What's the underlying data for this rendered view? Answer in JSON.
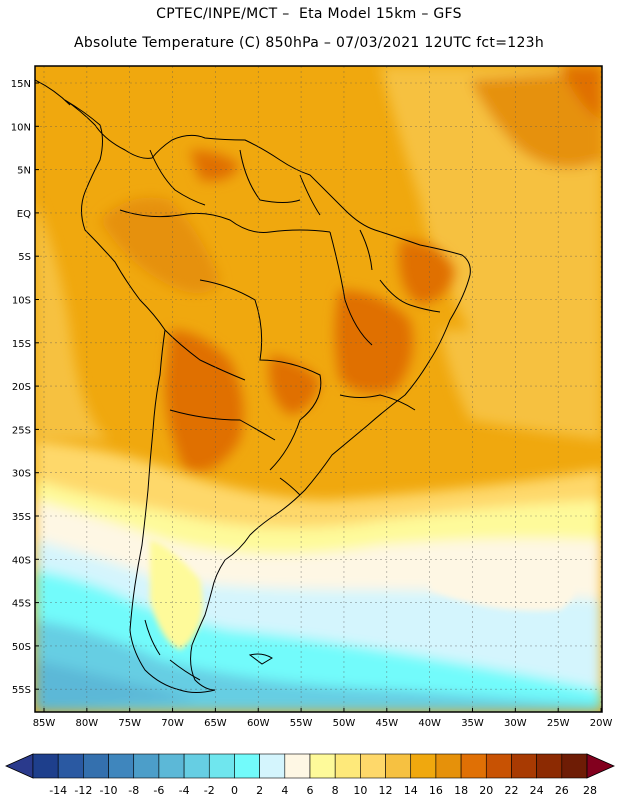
{
  "header": {
    "line1": "CPTEC/INPE/MCT –  Eta Model 15km – GFS",
    "line2": "Absolute Temperature (C) 850hPa – 07/03/2021 12UTC fct=123h"
  },
  "map": {
    "region": "South America",
    "lat_labels": [
      "15N",
      "10N",
      "5N",
      "EQ",
      "5S",
      "10S",
      "15S",
      "20S",
      "25S",
      "30S",
      "35S",
      "40S",
      "45S",
      "50S",
      "55S"
    ],
    "lon_labels": [
      "85W",
      "80W",
      "75W",
      "70W",
      "65W",
      "60W",
      "55W",
      "50W",
      "45W",
      "40W",
      "35W",
      "30W",
      "25W",
      "20W"
    ]
  },
  "colorbar": {
    "labels": [
      "-14",
      "-12",
      "-10",
      "-8",
      "-6",
      "-4",
      "-2",
      "0",
      "2",
      "4",
      "6",
      "8",
      "10",
      "12",
      "14",
      "16",
      "18",
      "20",
      "22",
      "24",
      "26",
      "28"
    ],
    "colors": [
      "#1e3f8c",
      "#2a59a2",
      "#3470ae",
      "#3f86bd",
      "#4c9ec9",
      "#5cb8d7",
      "#66cee3",
      "#6fe6ee",
      "#72fbfb",
      "#d4f5fd",
      "#fef7e4",
      "#fefa9a",
      "#fee97a",
      "#fed86a",
      "#f6c141",
      "#f0a80e",
      "#e6910a",
      "#e07005",
      "#c85203",
      "#a83a02",
      "#8c2a02",
      "#6e1c05"
    ],
    "under_color": "#2a3a8c",
    "over_color": "#82001e"
  }
}
